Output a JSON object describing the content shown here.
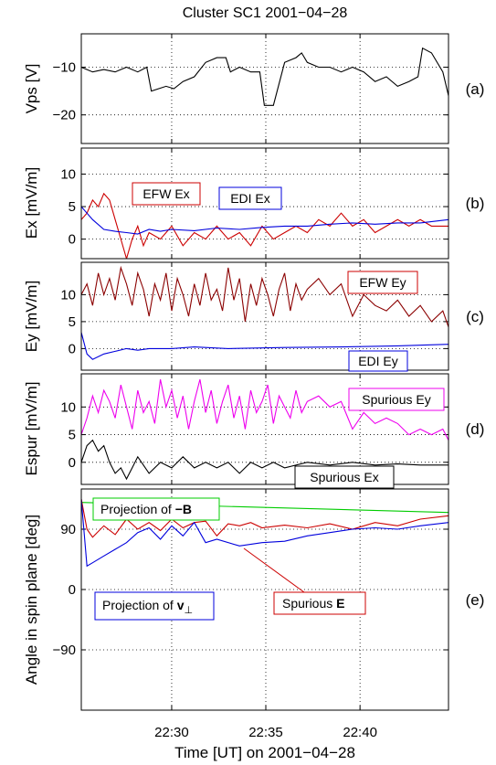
{
  "title": "Cluster SC1 2001−04−28",
  "xlabel": "Time [UT] on 2001−04−28",
  "xticks": [
    "22:30",
    "22:35",
    "22:40"
  ],
  "colors": {
    "black": "#000000",
    "red": "#cc0000",
    "darkred": "#8b0000",
    "blue": "#0000dd",
    "magenta": "#ee00ee",
    "green": "#00cc00"
  },
  "chart_data": [
    {
      "type": "line",
      "panel": "(a)",
      "ylabel": "Vps [V]",
      "xlim": [
        22.42,
        22.745
      ],
      "ylim": [
        -26,
        -3
      ],
      "yticks": [
        -10,
        -20
      ],
      "ytick_labels": [
        "−10",
        "−20"
      ],
      "series": [
        {
          "color": "black",
          "x": [
            22.42,
            22.43,
            22.44,
            22.45,
            22.46,
            22.47,
            22.478,
            22.482,
            22.495,
            22.502,
            22.51,
            22.52,
            22.53,
            22.54,
            22.548,
            22.552,
            22.56,
            22.57,
            22.578,
            22.582,
            22.59,
            22.6,
            22.61,
            22.615,
            22.62,
            22.63,
            22.64,
            22.65,
            22.66,
            22.67,
            22.68,
            22.69,
            22.7,
            22.71,
            22.718,
            22.722,
            22.73,
            22.74,
            22.745
          ],
          "y": [
            -10,
            -11,
            -10.5,
            -11,
            -10,
            -11,
            -10,
            -15,
            -14,
            -14.5,
            -13,
            -12,
            -9,
            -8,
            -8,
            -11,
            -10,
            -11,
            -11,
            -18,
            -18,
            -9,
            -8,
            -7,
            -9,
            -10,
            -10,
            -11,
            -10,
            -11,
            -13,
            -12,
            -14,
            -13,
            -12,
            -6,
            -7,
            -11,
            -16
          ]
        }
      ]
    },
    {
      "type": "line",
      "panel": "(b)",
      "ylabel": "Ex [mV/m]",
      "xlim": [
        22.42,
        22.745
      ],
      "ylim": [
        -3,
        14
      ],
      "yticks": [
        10,
        5,
        0
      ],
      "ytick_labels": [
        "10",
        "5",
        "0"
      ],
      "series": [
        {
          "label": "EFW Ex",
          "color": "red",
          "x": [
            22.42,
            22.425,
            22.43,
            22.435,
            22.44,
            22.445,
            22.45,
            22.455,
            22.46,
            22.465,
            22.47,
            22.475,
            22.48,
            22.49,
            22.5,
            22.51,
            22.52,
            22.53,
            22.54,
            22.55,
            22.56,
            22.57,
            22.58,
            22.59,
            22.6,
            22.61,
            22.62,
            22.63,
            22.64,
            22.65,
            22.66,
            22.67,
            22.68,
            22.69,
            22.7,
            22.71,
            22.72,
            22.73,
            22.74,
            22.745
          ],
          "y": [
            3,
            4,
            6,
            5,
            7,
            6,
            3,
            0,
            -3,
            0,
            2,
            -1,
            1,
            0,
            2,
            -1,
            1,
            0,
            2,
            0,
            1,
            -1,
            2,
            0,
            1,
            2,
            1,
            3,
            2,
            4,
            2,
            3,
            1,
            2,
            3,
            2,
            3,
            2,
            2,
            2
          ]
        },
        {
          "label": "EDI Ex",
          "color": "blue",
          "x": [
            22.42,
            22.43,
            22.44,
            22.45,
            22.46,
            22.47,
            22.48,
            22.49,
            22.5,
            22.52,
            22.54,
            22.56,
            22.58,
            22.6,
            22.62,
            22.64,
            22.66,
            22.68,
            22.7,
            22.72,
            22.745
          ],
          "y": [
            5,
            3,
            1.5,
            1.2,
            1,
            0.8,
            1.5,
            1.2,
            1.5,
            1.3,
            1.7,
            1.5,
            1.8,
            2,
            2,
            2.3,
            2.5,
            2.3,
            2.5,
            2.5,
            3
          ]
        }
      ]
    },
    {
      "type": "line",
      "panel": "(c)",
      "ylabel": "Ey [mV/m]",
      "xlim": [
        22.42,
        22.745
      ],
      "ylim": [
        -4,
        16
      ],
      "yticks": [
        10,
        5,
        0
      ],
      "ytick_labels": [
        "10",
        "5",
        "0"
      ],
      "series": [
        {
          "label": "EFW Ey",
          "color": "darkred",
          "x": [
            22.42,
            22.425,
            22.43,
            22.435,
            22.44,
            22.445,
            22.45,
            22.455,
            22.46,
            22.465,
            22.47,
            22.475,
            22.48,
            22.485,
            22.49,
            22.495,
            22.5,
            22.505,
            22.51,
            22.515,
            22.52,
            22.525,
            22.53,
            22.535,
            22.54,
            22.545,
            22.55,
            22.555,
            22.56,
            22.565,
            22.57,
            22.575,
            22.58,
            22.585,
            22.59,
            22.595,
            22.6,
            22.605,
            22.61,
            22.615,
            22.62,
            22.63,
            22.64,
            22.65,
            22.66,
            22.67,
            22.68,
            22.69,
            22.7,
            22.71,
            22.72,
            22.73,
            22.74,
            22.745
          ],
          "y": [
            10,
            12,
            8,
            14,
            10,
            13,
            9,
            15,
            12,
            8,
            14,
            11,
            6,
            12,
            9,
            14,
            7,
            13,
            10,
            6,
            12,
            8,
            14,
            9,
            11,
            7,
            15,
            9,
            13,
            5,
            12,
            8,
            13,
            10,
            6,
            11,
            14,
            7,
            12,
            9,
            11,
            13,
            10,
            12,
            6,
            10,
            8,
            7,
            9,
            6,
            8,
            5,
            7,
            4
          ]
        },
        {
          "label": "EDI Ey",
          "color": "blue",
          "x": [
            22.42,
            22.425,
            22.43,
            22.44,
            22.45,
            22.46,
            22.47,
            22.48,
            22.5,
            22.52,
            22.55,
            22.6,
            22.65,
            22.7,
            22.745
          ],
          "y": [
            3,
            -1,
            -2,
            -1,
            -0.5,
            0,
            -0.3,
            0,
            0,
            0.3,
            0,
            0.2,
            0.3,
            0.5,
            0.8
          ]
        }
      ]
    },
    {
      "type": "line",
      "panel": "(d)",
      "ylabel": "Espur [mV/m]",
      "xlim": [
        22.42,
        22.745
      ],
      "ylim": [
        -4,
        16
      ],
      "yticks": [
        10,
        5,
        0
      ],
      "ytick_labels": [
        "10",
        "5",
        "0"
      ],
      "series": [
        {
          "label": "Spurious Ey",
          "color": "magenta",
          "x": [
            22.42,
            22.425,
            22.43,
            22.435,
            22.44,
            22.445,
            22.45,
            22.455,
            22.46,
            22.465,
            22.47,
            22.475,
            22.48,
            22.485,
            22.49,
            22.495,
            22.5,
            22.505,
            22.51,
            22.515,
            22.52,
            22.525,
            22.53,
            22.535,
            22.54,
            22.545,
            22.55,
            22.555,
            22.56,
            22.565,
            22.57,
            22.575,
            22.58,
            22.585,
            22.59,
            22.595,
            22.6,
            22.605,
            22.61,
            22.615,
            22.62,
            22.63,
            22.64,
            22.65,
            22.66,
            22.67,
            22.68,
            22.69,
            22.7,
            22.71,
            22.72,
            22.73,
            22.74,
            22.745
          ],
          "y": [
            5,
            8,
            12,
            9,
            13,
            11,
            8,
            14,
            10,
            6,
            13,
            9,
            11,
            7,
            15,
            10,
            13,
            8,
            12,
            6,
            11,
            15,
            9,
            13,
            7,
            11,
            14,
            8,
            12,
            6,
            13,
            9,
            11,
            14,
            7,
            12,
            10,
            8,
            13,
            9,
            11,
            12,
            10,
            11,
            6,
            9,
            7,
            8,
            7,
            5,
            6,
            5,
            6,
            4
          ]
        },
        {
          "label": "Spurious Ex",
          "color": "black",
          "x": [
            22.42,
            22.425,
            22.43,
            22.435,
            22.44,
            22.445,
            22.45,
            22.455,
            22.46,
            22.465,
            22.47,
            22.48,
            22.49,
            22.5,
            22.51,
            22.52,
            22.53,
            22.54,
            22.55,
            22.56,
            22.57,
            22.58,
            22.59,
            22.6,
            22.62,
            22.64,
            22.66,
            22.68,
            22.7,
            22.72,
            22.745
          ],
          "y": [
            0,
            3,
            4,
            2,
            3,
            0,
            -2,
            -1,
            -3,
            -1,
            1,
            -2,
            0,
            -1,
            1,
            -1,
            0,
            -1,
            0,
            -2,
            0,
            -1,
            0,
            -1,
            0,
            -0.5,
            0,
            -0.5,
            -0.3,
            -0.5,
            -0.5
          ]
        }
      ]
    },
    {
      "type": "line",
      "panel": "(e)",
      "ylabel": "Angle in spin plane [deg]",
      "xlim": [
        22.42,
        22.745
      ],
      "ylim": [
        -180,
        150
      ],
      "yticks": [
        90,
        0,
        -90
      ],
      "ytick_labels": [
        "90",
        "0",
        "−90"
      ],
      "series": [
        {
          "label": "Projection of −B",
          "color": "green",
          "x": [
            22.42,
            22.745
          ],
          "y": [
            130,
            115
          ]
        },
        {
          "label": "Spurious E",
          "color": "red",
          "x": [
            22.42,
            22.425,
            22.43,
            22.44,
            22.45,
            22.46,
            22.47,
            22.48,
            22.49,
            22.5,
            22.51,
            22.52,
            22.53,
            22.54,
            22.55,
            22.56,
            22.57,
            22.58,
            22.6,
            22.62,
            22.64,
            22.66,
            22.68,
            22.7,
            22.72,
            22.745
          ],
          "y": [
            135,
            90,
            78,
            95,
            82,
            105,
            90,
            100,
            88,
            105,
            92,
            100,
            102,
            80,
            98,
            95,
            100,
            92,
            96,
            92,
            98,
            90,
            100,
            95,
            105,
            110
          ]
        },
        {
          "label": "Projection of v⊥",
          "color": "blue",
          "x": [
            22.42,
            22.425,
            22.43,
            22.44,
            22.45,
            22.46,
            22.47,
            22.48,
            22.49,
            22.5,
            22.51,
            22.52,
            22.53,
            22.54,
            22.56,
            22.58,
            22.6,
            22.62,
            22.64,
            22.66,
            22.68,
            22.7,
            22.72,
            22.745
          ],
          "y": [
            135,
            35,
            40,
            50,
            60,
            70,
            85,
            92,
            75,
            95,
            80,
            100,
            70,
            75,
            65,
            70,
            72,
            80,
            85,
            90,
            92,
            90,
            95,
            100
          ]
        }
      ]
    }
  ],
  "annotations": {
    "b_red": "EFW Ex",
    "b_blue": "EDI Ex",
    "c_red": "EFW Ey",
    "c_blue": "EDI Ey",
    "d_mag": "Spurious Ey",
    "d_blk": "Spurious Ex",
    "e_green_pre": "Projection of",
    "e_green_sym": "−B",
    "e_blue_pre": "Projection of",
    "e_blue_sym": "v",
    "e_blue_sub": "⊥",
    "e_red_pre": "Spurious",
    "e_red_sym": "E"
  }
}
